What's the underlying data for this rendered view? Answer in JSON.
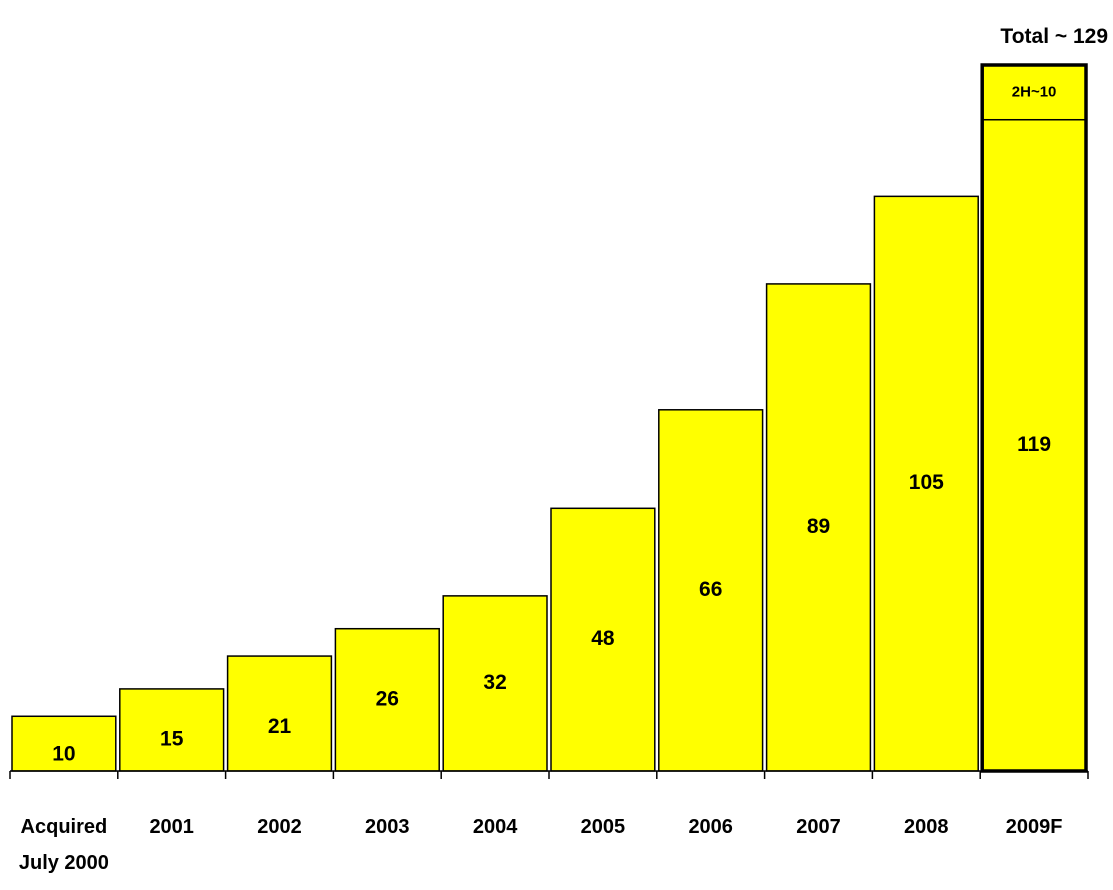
{
  "chart_data": {
    "type": "bar",
    "categories": [
      [
        "Acquired",
        "July 2000"
      ],
      [
        "2001"
      ],
      [
        "2002"
      ],
      [
        "2003"
      ],
      [
        "2004"
      ],
      [
        "2005"
      ],
      [
        "2006"
      ],
      [
        "2007"
      ],
      [
        "2008"
      ],
      [
        "2009F"
      ]
    ],
    "values": [
      10,
      15,
      21,
      26,
      32,
      48,
      66,
      89,
      105,
      119
    ],
    "value_labels": [
      "10",
      "15",
      "21",
      "26",
      "32",
      "48",
      "66",
      "89",
      "105",
      "119"
    ],
    "stacked_top": {
      "category_index": 9,
      "value": 10,
      "label": "2H~10"
    },
    "total_label": "Total ~ 129",
    "ylim": [
      0,
      129
    ],
    "bar_color": "#ffff00",
    "outline_color": "#000000",
    "emphasized_index": 9
  }
}
